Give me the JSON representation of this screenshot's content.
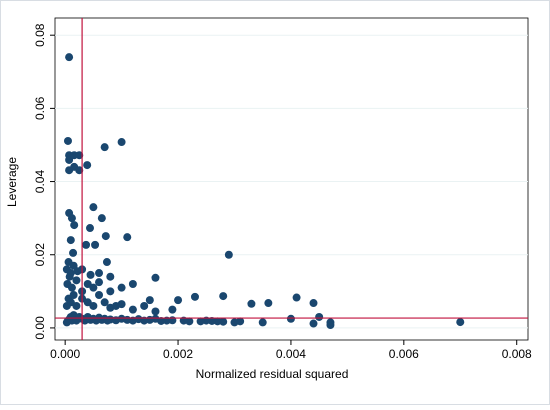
{
  "chart_data": {
    "type": "scatter",
    "x_label": "Normalized residual squared",
    "y_label": "Leverage",
    "color": "#1a476f",
    "xlim": [
      -0.00018,
      0.0082
    ],
    "ylim": [
      -0.0033,
      0.0847
    ],
    "xticks": [
      {
        "value": 0,
        "label": "0.000"
      },
      {
        "value": 0.002,
        "label": "0.002"
      },
      {
        "value": 0.004,
        "label": "0.004"
      },
      {
        "value": 0.006,
        "label": "0.006"
      },
      {
        "value": 0.008,
        "label": "0.008"
      }
    ],
    "yticks": [
      {
        "value": 0,
        "label": "0.00"
      },
      {
        "value": 0.02,
        "label": "0.02"
      },
      {
        "value": 0.04,
        "label": "0.04"
      },
      {
        "value": 0.06,
        "label": "0.06"
      },
      {
        "value": 0.08,
        "label": "0.08"
      }
    ],
    "grid": true,
    "reference_lines": {
      "x": 0.0003,
      "y": 0.0027,
      "color": "#c0123c"
    },
    "x": [
      7e-05,
      5e-05,
      7e-05,
      7e-05,
      7e-05,
      0.00016,
      0.00025,
      0.00016,
      0.00025,
      0.00039,
      0.0007,
      0.001,
      7e-05,
      0.00012,
      0.00016,
      0.0005,
      0.00065,
      0.0001,
      0.00014,
      0.00044,
      0.00037,
      0.00053,
      0.00074,
      0.0011,
      0.00072,
      0.0016,
      0.0029,
      0.0041,
      0.0036,
      0.0033,
      0.0028,
      0.0023,
      0.002,
      0.0015,
      0.0044,
      0.0045,
      0.0047,
      0.0044,
      0.0047,
      0.004,
      0.0035,
      0.007,
      0.003,
      0.0027,
      0.0025,
      0.0022,
      0.0018,
      0.0016,
      3e-05,
      5e-05,
      8e-05,
      0.0001,
      0.00012,
      0.00015,
      0.0002,
      0.00025,
      0.0003,
      0.00035,
      0.0004,
      0.00045,
      0.0005,
      0.00055,
      0.0006,
      0.00065,
      0.0007,
      0.00075,
      0.0008,
      0.0009,
      0.001,
      0.0011,
      0.0012,
      0.0013,
      0.0014,
      0.0015,
      0.0017,
      0.0019,
      0.0021,
      0.0024,
      0.0026,
      0.0028,
      0.0031,
      3e-05,
      6e-05,
      0.0001,
      0.00015,
      0.0002,
      0.0003,
      0.0004,
      0.0005,
      0.0006,
      0.0007,
      0.0008,
      0.0009,
      0.001,
      0.0012,
      0.0014,
      0.0016,
      0.0019,
      4e-05,
      8e-05,
      0.00012,
      0.0002,
      0.0003,
      0.0004,
      0.0005,
      0.0006,
      0.0008,
      0.001,
      0.0012,
      3e-05,
      6e-05,
      0.0001,
      0.00015,
      0.00022,
      0.0003,
      0.00045,
      0.0006,
      0.0008
    ],
    "values": [
      0.074,
      0.0511,
      0.0472,
      0.0459,
      0.0431,
      0.0472,
      0.0472,
      0.044,
      0.0431,
      0.0445,
      0.0494,
      0.0508,
      0.0314,
      0.03,
      0.0281,
      0.033,
      0.03,
      0.024,
      0.0205,
      0.0273,
      0.0227,
      0.0227,
      0.018,
      0.0248,
      0.0251,
      0.0137,
      0.02,
      0.0083,
      0.0068,
      0.0066,
      0.0087,
      0.0085,
      0.0076,
      0.0076,
      0.0068,
      0.003,
      0.0015,
      0.0012,
      0.0008,
      0.0025,
      0.0015,
      0.0016,
      0.0015,
      0.0018,
      0.002,
      0.0018,
      0.002,
      0.0025,
      0.0015,
      0.002,
      0.0025,
      0.003,
      0.002,
      0.0035,
      0.002,
      0.003,
      0.0025,
      0.002,
      0.003,
      0.0022,
      0.0025,
      0.002,
      0.0028,
      0.0022,
      0.0025,
      0.002,
      0.0023,
      0.0021,
      0.0025,
      0.0022,
      0.002,
      0.0024,
      0.002,
      0.0022,
      0.0019,
      0.0021,
      0.002,
      0.0018,
      0.0019,
      0.0017,
      0.0018,
      0.006,
      0.008,
      0.007,
      0.009,
      0.006,
      0.008,
      0.007,
      0.006,
      0.009,
      0.007,
      0.0055,
      0.006,
      0.0065,
      0.005,
      0.006,
      0.0045,
      0.005,
      0.012,
      0.014,
      0.011,
      0.013,
      0.01,
      0.012,
      0.011,
      0.0125,
      0.01,
      0.011,
      0.012,
      0.016,
      0.018,
      0.015,
      0.017,
      0.0155,
      0.016,
      0.0145,
      0.015,
      0.014
    ]
  }
}
